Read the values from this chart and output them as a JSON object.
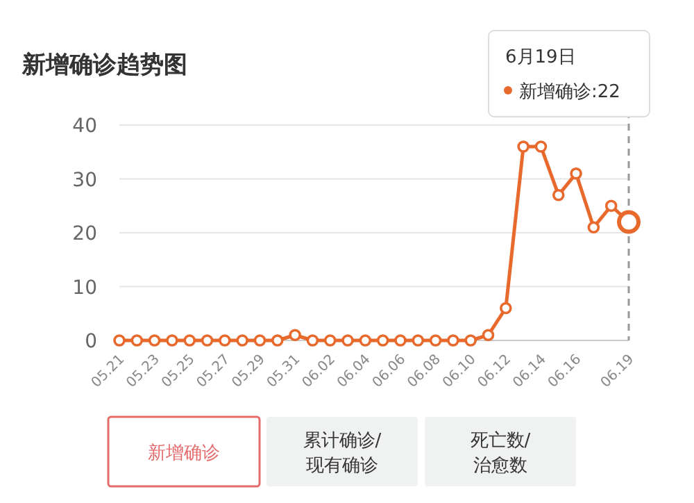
{
  "chart_data": {
    "type": "line",
    "title": "新增确诊趋势图",
    "categories": [
      "05.21",
      null,
      "05.23",
      null,
      "05.25",
      null,
      "05.27",
      null,
      "05.29",
      null,
      "05.31",
      null,
      "06.02",
      null,
      "06.04",
      null,
      "06.06",
      null,
      "06.08",
      null,
      "06.10",
      null,
      "06.12",
      null,
      "06.14",
      null,
      "06.16",
      null,
      null,
      "06.19"
    ],
    "series": [
      {
        "color": "#e8692c",
        "values": [
          0,
          0,
          0,
          0,
          0,
          0,
          0,
          0,
          0,
          0,
          1,
          0,
          0,
          0,
          0,
          0,
          0,
          0,
          0,
          0,
          0,
          1,
          6,
          36,
          36,
          27,
          31,
          21,
          25,
          22
        ]
      }
    ],
    "ylim": [
      0,
      40
    ],
    "yticks": [
      0,
      10,
      20,
      30,
      40
    ],
    "grid": "y",
    "marker": "circle",
    "line_style": "solid",
    "ref_lines": [
      {
        "axis": "x",
        "value": "06.19",
        "color": "#999999",
        "line_style": "dashed"
      }
    ],
    "annotations": [
      "6月19日",
      "新增确诊:22",
      "新增确诊",
      "累计确诊/\n现有确诊",
      "死亡数/\n治愈数"
    ]
  }
}
